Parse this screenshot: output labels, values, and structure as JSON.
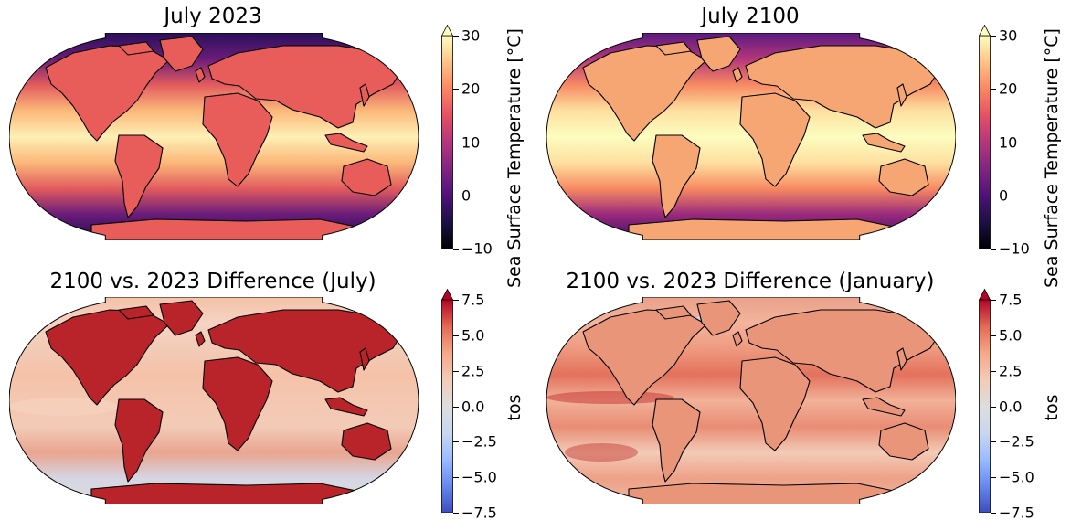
{
  "panels": [
    {
      "title": "July 2023",
      "colormap": "magma",
      "colorbar": {
        "label": "Sea Surface Temperature [°C]",
        "min": -10,
        "max": 30,
        "ticks": [
          "−10",
          "0",
          "10",
          "20",
          "30"
        ],
        "extend": "max"
      },
      "land_color": "#e85c5a"
    },
    {
      "title": "July 2100",
      "colormap": "magma",
      "colorbar": {
        "label": "Sea Surface Temperature [°C]",
        "min": -10,
        "max": 30,
        "ticks": [
          "−10",
          "0",
          "10",
          "20",
          "30"
        ],
        "extend": "max"
      },
      "land_color": "#f5a673"
    },
    {
      "title": "2100 vs. 2023 Difference (July)",
      "colormap": "coolwarm",
      "colorbar": {
        "label": "tos",
        "min": -7.5,
        "max": 7.5,
        "ticks": [
          "−7.5",
          "−5.0",
          "−2.5",
          "0.0",
          "2.5",
          "5.0",
          "7.5"
        ],
        "extend": "both"
      },
      "land_color": "#b8242a"
    },
    {
      "title": "2100 vs. 2023 Difference (January)",
      "colormap": "coolwarm",
      "colorbar": {
        "label": "tos",
        "min": -7.5,
        "max": 7.5,
        "ticks": [
          "−7.5",
          "−5.0",
          "−2.5",
          "0.0",
          "2.5",
          "5.0",
          "7.5"
        ],
        "extend": "both"
      },
      "land_color": "#e9957a"
    }
  ]
}
